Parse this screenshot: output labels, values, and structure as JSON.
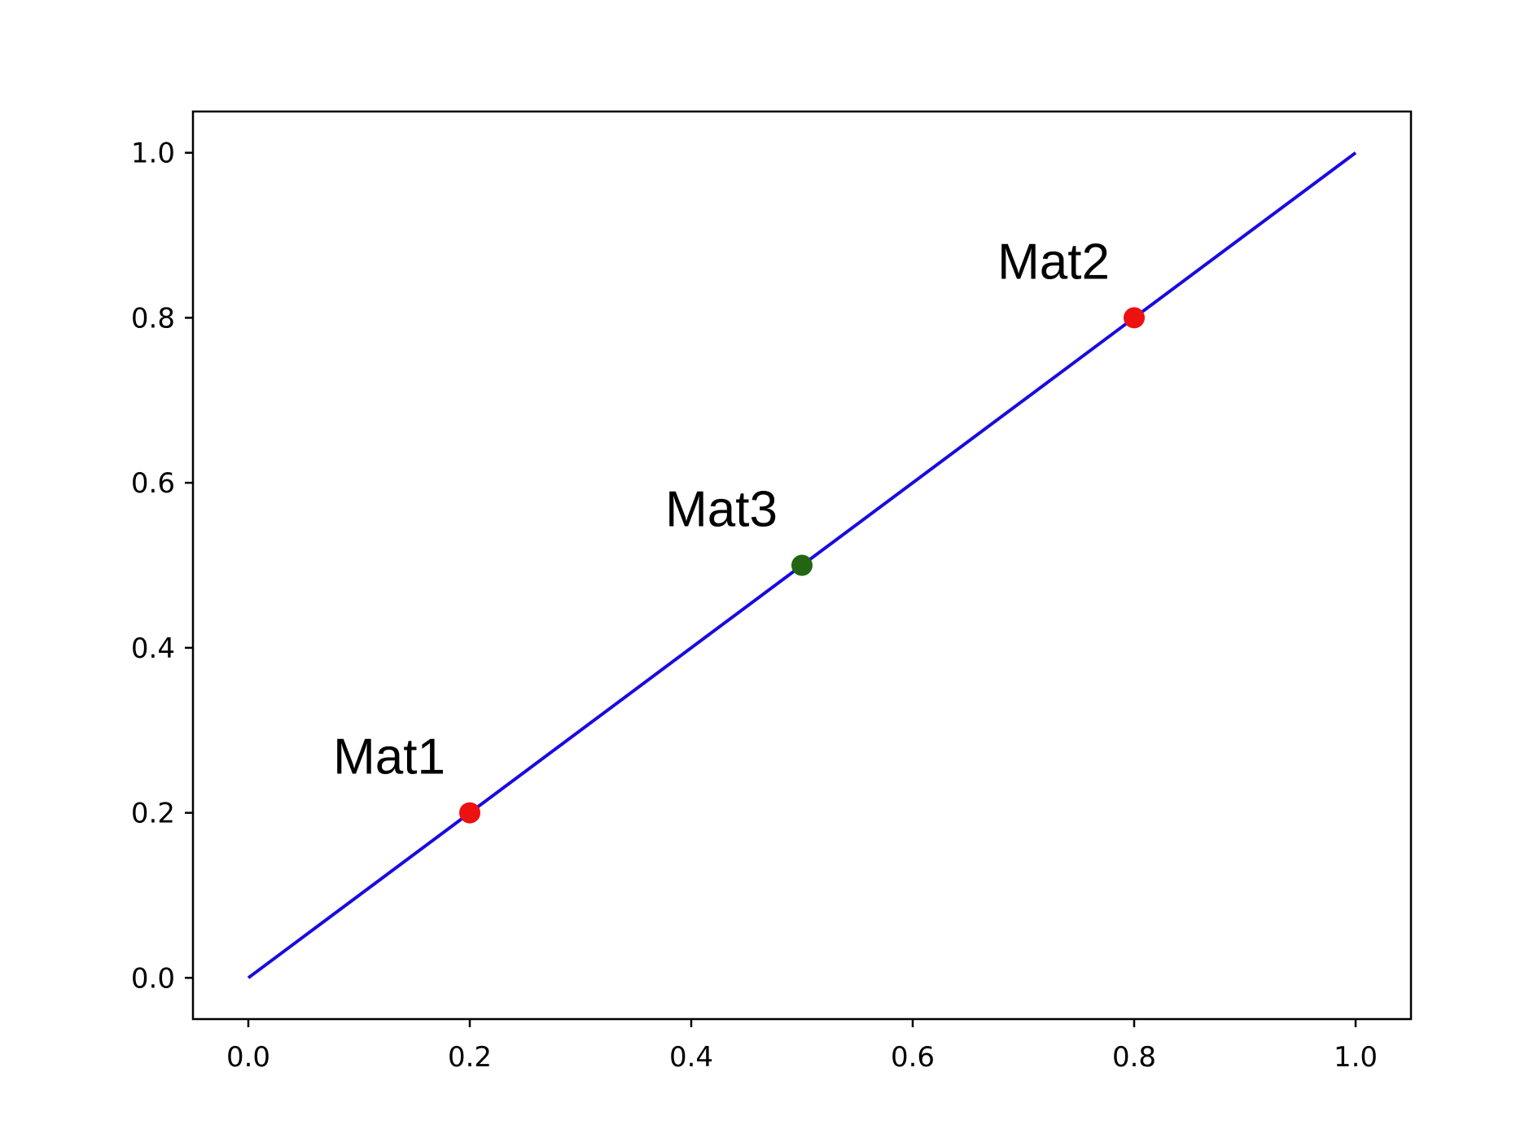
{
  "chart_data": {
    "type": "line",
    "title": "",
    "xlabel": "",
    "ylabel": "",
    "xlim": [
      -0.05,
      1.05
    ],
    "ylim": [
      -0.05,
      1.05
    ],
    "grid": false,
    "x_ticks": [
      0.0,
      0.2,
      0.4,
      0.6,
      0.8,
      1.0
    ],
    "y_ticks": [
      0.0,
      0.2,
      0.4,
      0.6,
      0.8,
      1.0
    ],
    "x_tick_labels": [
      "0.0",
      "0.2",
      "0.4",
      "0.6",
      "0.8",
      "1.0"
    ],
    "y_tick_labels": [
      "0.0",
      "0.2",
      "0.4",
      "0.6",
      "0.8",
      "1.0"
    ],
    "series": [
      {
        "type": "line",
        "x": [
          0.0,
          1.0
        ],
        "y": [
          0.0,
          1.0
        ],
        "color": "#1a0ae0"
      }
    ],
    "points": [
      {
        "label": "Mat1",
        "x": 0.2,
        "y": 0.2,
        "color": "#ee1111"
      },
      {
        "label": "Mat2",
        "x": 0.8,
        "y": 0.8,
        "color": "#ee1111"
      },
      {
        "label": "Mat3",
        "x": 0.5,
        "y": 0.5,
        "color": "#226611"
      }
    ]
  }
}
